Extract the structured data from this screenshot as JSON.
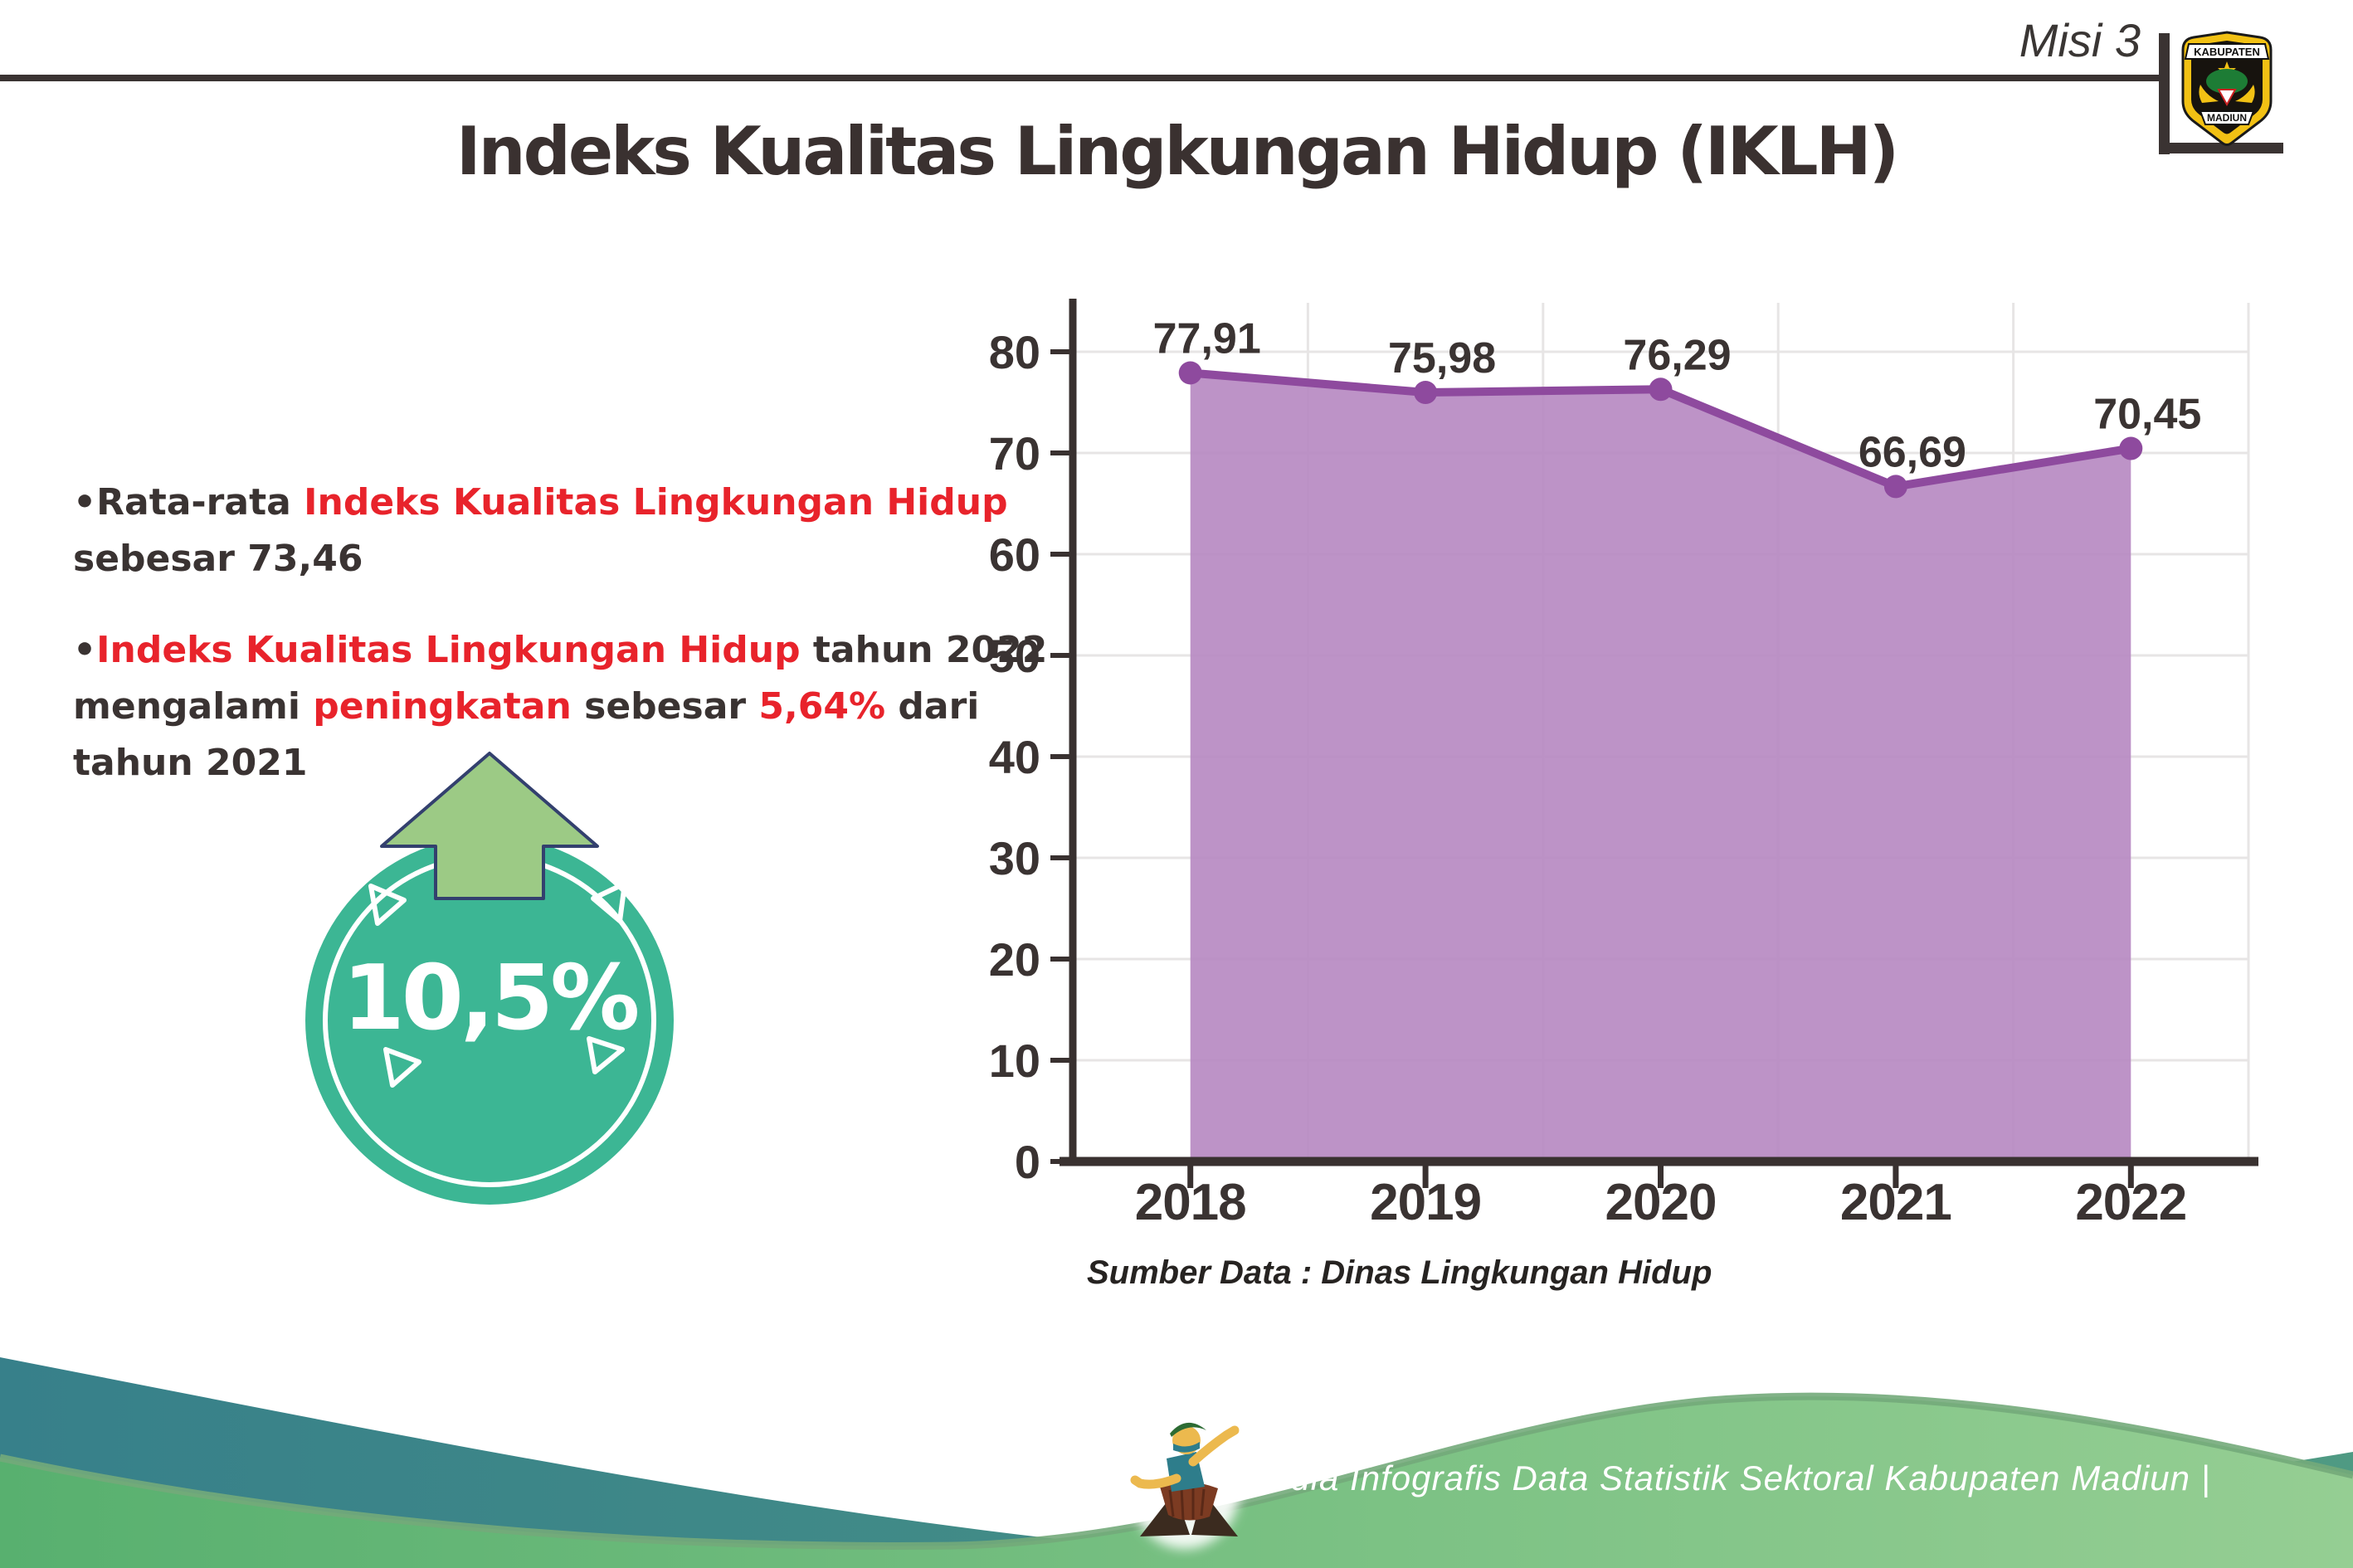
{
  "header": {
    "misi_label": "Misi 3",
    "logo": {
      "top_text": "KABUPATEN",
      "bottom_text": "MADIUN"
    }
  },
  "title": "Indeks Kualitas Lingkungan Hidup (IKLH)",
  "bullets": [
    {
      "segments": [
        {
          "t": "•Rata-rata ",
          "c": "dark"
        },
        {
          "t": "Indeks Kualitas Lingkungan Hidup",
          "c": "red"
        },
        {
          "t": "",
          "c": "br"
        },
        {
          "t": "sebesar 73,46",
          "c": "dark"
        }
      ]
    },
    {
      "segments": [
        {
          "t": "•",
          "c": "dark"
        },
        {
          "t": "Indeks Kualitas Lingkungan Hidup",
          "c": "red"
        },
        {
          "t": " tahun 2022",
          "c": "dark"
        },
        {
          "t": "",
          "c": "br"
        },
        {
          "t": "mengalami ",
          "c": "dark"
        },
        {
          "t": "peningkatan",
          "c": "red"
        },
        {
          "t": " sebesar ",
          "c": "dark"
        },
        {
          "t": "5,64%",
          "c": "red"
        },
        {
          "t": " dari",
          "c": "dark"
        },
        {
          "t": "",
          "c": "br"
        },
        {
          "t": "tahun 2021",
          "c": "dark"
        }
      ]
    }
  ],
  "badge": {
    "value": "10,5%"
  },
  "chart_data": {
    "type": "area",
    "title": "",
    "categories": [
      "2018",
      "2019",
      "2020",
      "2021",
      "2022"
    ],
    "values": [
      77.91,
      75.98,
      76.29,
      66.69,
      70.45
    ],
    "labels": [
      "77,91",
      "75,98",
      "76,29",
      "66,69",
      "70,45"
    ],
    "xlabel": "",
    "ylabel": "",
    "ylim": [
      0,
      80
    ],
    "ytick_step": 10,
    "grid": true,
    "legend": false,
    "source_note": "Sumber Data : Dinas Lingkungan Hidup",
    "colors": {
      "line": "#8e4a9e",
      "fill": "#b687c1",
      "axis": "#393130",
      "grid": "#e7e5e5",
      "label": "#3a3332"
    }
  },
  "footer": {
    "text": "Media Infografis Data Statistik Sektoral Kabupaten Madiun |"
  },
  "colors": {
    "dark_text": "#3a3332",
    "red_text": "#e8232b",
    "badge_teal": "#3cb694",
    "arrow_green": "#9cca85",
    "wave_teal": "#37808a",
    "wave_green": "#6fbc7d"
  }
}
